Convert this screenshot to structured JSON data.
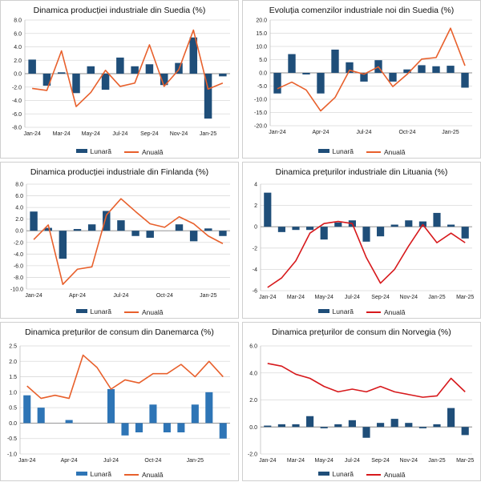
{
  "chart_data": [
    {
      "type": "bar+line",
      "title": "Dinamica producției industriale din Suedia (%)",
      "categories": [
        "Jan-24",
        "Feb-24",
        "Mar-24",
        "Apr-24",
        "May-24",
        "Jun-24",
        "Jul-24",
        "Aug-24",
        "Sep-24",
        "Oct-24",
        "Nov-24",
        "Dec-24",
        "Jan-25",
        "Feb-25"
      ],
      "xlabels": [
        "Jan-24",
        "",
        "Mar-24",
        "",
        "May-24",
        "",
        "Jul-24",
        "",
        "Sep-24",
        "",
        "Nov-24",
        "",
        "Jan-25",
        ""
      ],
      "ylim": [
        -8,
        8
      ],
      "yticks": [
        -8,
        -6,
        -4,
        -2,
        0,
        2,
        4,
        6,
        8
      ],
      "ydecimals": 1,
      "xlabel_pos": "bottom",
      "series": [
        {
          "name": "Lunară",
          "kind": "bar",
          "color": "#1f4e79",
          "values": [
            2.1,
            -1.8,
            0.2,
            -2.9,
            1.1,
            -2.4,
            2.4,
            1.1,
            1.4,
            -1.7,
            1.6,
            5.4,
            -6.7,
            -0.4
          ]
        },
        {
          "name": "Anuală",
          "kind": "line",
          "color": "#e8602c",
          "values": [
            -2.2,
            -2.5,
            3.4,
            -4.9,
            -2.8,
            0.5,
            -1.9,
            -1.4,
            4.3,
            -1.9,
            0.6,
            6.5,
            -2.3,
            -1.4
          ]
        }
      ]
    },
    {
      "type": "bar+line",
      "title": "Evoluția comenzilor industriale noi din Suedia (%)",
      "categories": [
        "Jan-24",
        "Feb-24",
        "Mar-24",
        "Apr-24",
        "May-24",
        "Jun-24",
        "Jul-24",
        "Aug-24",
        "Sep-24",
        "Oct-24",
        "Nov-24",
        "Dec-24",
        "Jan-25",
        "Feb-25"
      ],
      "xlabels": [
        "Jan-24",
        "",
        "",
        "Apr-24",
        "",
        "",
        "Jul-24",
        "",
        "",
        "Oct-24",
        "",
        "",
        "Jan-25",
        ""
      ],
      "ylim": [
        -20,
        20
      ],
      "yticks": [
        -20,
        -15,
        -10,
        -5,
        0,
        5,
        10,
        15,
        20
      ],
      "ydecimals": 1,
      "xlabel_pos": "bottom",
      "series": [
        {
          "name": "Lunară",
          "kind": "bar",
          "color": "#1f4e79",
          "values": [
            -7.8,
            7.1,
            -0.6,
            -7.8,
            8.8,
            4.0,
            -3.3,
            4.8,
            -3.3,
            1.3,
            2.9,
            2.5,
            2.7,
            -5.6
          ]
        },
        {
          "name": "Anuală",
          "kind": "line",
          "color": "#e8602c",
          "values": [
            -6.0,
            -3.5,
            -6.5,
            -14.4,
            -9.3,
            1.0,
            -0.5,
            2.3,
            -5.2,
            -0.5,
            5.2,
            5.8,
            16.9,
            2.7
          ]
        }
      ]
    },
    {
      "type": "bar+line",
      "title": "Dinamica producției industriale din Finlanda (%)",
      "categories": [
        "Jan-24",
        "Feb-24",
        "Mar-24",
        "Apr-24",
        "May-24",
        "Jun-24",
        "Jul-24",
        "Aug-24",
        "Sep-24",
        "Oct-24",
        "Nov-24",
        "Dec-24",
        "Jan-25",
        "Feb-25"
      ],
      "xlabels": [
        "Jan-24",
        "",
        "",
        "Apr-24",
        "",
        "",
        "Jul-24",
        "",
        "",
        "Oct-24",
        "",
        "",
        "Jan-25",
        ""
      ],
      "ylim": [
        -10,
        8
      ],
      "yticks": [
        -10,
        -8,
        -6,
        -4,
        -2,
        0,
        2,
        4,
        6,
        8
      ],
      "ydecimals": 1,
      "xlabel_pos": "bottom",
      "series": [
        {
          "name": "Lunară",
          "kind": "bar",
          "color": "#1f4e79",
          "values": [
            3.3,
            0.5,
            -4.8,
            0.3,
            1.1,
            3.4,
            1.8,
            -0.9,
            -1.2,
            0.0,
            1.1,
            -1.8,
            0.4,
            -0.9
          ]
        },
        {
          "name": "Anuală",
          "kind": "line",
          "color": "#e8602c",
          "values": [
            -1.5,
            1.0,
            -9.2,
            -6.6,
            -6.2,
            2.7,
            5.5,
            3.3,
            1.2,
            0.6,
            2.4,
            1.2,
            -0.9,
            -2.2
          ]
        }
      ]
    },
    {
      "type": "bar+line",
      "title": "Dinamica prețurilor industriale din Lituania (%)",
      "categories": [
        "Jan-24",
        "Feb-24",
        "Mar-24",
        "Apr-24",
        "May-24",
        "Jun-24",
        "Jul-24",
        "Aug-24",
        "Sep-24",
        "Oct-24",
        "Nov-24",
        "Dec-24",
        "Jan-25",
        "Feb-25",
        "Mar-25"
      ],
      "xlabels": [
        "Jan-24",
        "",
        "Mar-24",
        "",
        "May-24",
        "",
        "Jul-24",
        "",
        "Sep-24",
        "",
        "Nov-24",
        "",
        "Jan-25",
        "",
        "Mar-25"
      ],
      "ylim": [
        -6,
        4
      ],
      "yticks": [
        -6,
        -4,
        -2,
        0,
        2,
        4
      ],
      "ydecimals": 0,
      "xlabel_pos": "bottom",
      "series": [
        {
          "name": "Lunară",
          "kind": "bar",
          "color": "#1f4e79",
          "values": [
            3.2,
            -0.5,
            -0.3,
            -0.3,
            -1.2,
            0.4,
            0.6,
            -1.4,
            -0.9,
            0.2,
            0.6,
            0.5,
            1.3,
            0.2,
            -1.1
          ]
        },
        {
          "name": "Anuală",
          "kind": "line",
          "color": "#d7191c",
          "values": [
            -5.7,
            -4.8,
            -3.2,
            -0.6,
            0.3,
            0.5,
            0.3,
            -2.9,
            -5.3,
            -4.0,
            -1.8,
            0.2,
            -1.5,
            -0.6,
            -1.5
          ]
        }
      ]
    },
    {
      "type": "bar+line",
      "title": "Dinamica prețurilor de consum din Danemarca (%)",
      "categories": [
        "Jan-24",
        "Feb-24",
        "Mar-24",
        "Apr-24",
        "May-24",
        "Jun-24",
        "Jul-24",
        "Aug-24",
        "Sep-24",
        "Oct-24",
        "Nov-24",
        "Dec-24",
        "Jan-25",
        "Feb-25",
        "Mar-25"
      ],
      "xlabels": [
        "Jan-24",
        "",
        "",
        "Apr-24",
        "",
        "",
        "Jul-24",
        "",
        "",
        "Oct-24",
        "",
        "",
        "Jan-25",
        "",
        ""
      ],
      "ylim": [
        -1,
        2.5
      ],
      "yticks": [
        -1,
        -0.5,
        0,
        0.5,
        1,
        1.5,
        2,
        2.5
      ],
      "ydecimals": 1,
      "xlabel_pos": "bottom",
      "series": [
        {
          "name": "Lunară",
          "kind": "bar",
          "color": "#2e75b6",
          "values": [
            0.9,
            0.5,
            0.0,
            0.1,
            0.0,
            0.0,
            1.1,
            -0.4,
            -0.3,
            0.6,
            -0.3,
            -0.3,
            0.6,
            1.0,
            -0.5
          ]
        },
        {
          "name": "Anuală",
          "kind": "line",
          "color": "#e8602c",
          "values": [
            1.2,
            0.8,
            0.9,
            0.8,
            2.2,
            1.8,
            1.1,
            1.4,
            1.3,
            1.6,
            1.6,
            1.9,
            1.5,
            2.0,
            1.5
          ]
        }
      ]
    },
    {
      "type": "bar+line",
      "title": "Dinamica prețurilor de consum din Norvegia (%)",
      "categories": [
        "Jan-24",
        "Feb-24",
        "Mar-24",
        "Apr-24",
        "May-24",
        "Jun-24",
        "Jul-24",
        "Aug-24",
        "Sep-24",
        "Oct-24",
        "Nov-24",
        "Dec-24",
        "Jan-25",
        "Feb-25",
        "Mar-25"
      ],
      "xlabels": [
        "Jan-24",
        "",
        "Mar-24",
        "",
        "May-24",
        "",
        "Jul-24",
        "",
        "Sep-24",
        "",
        "Nov-24",
        "",
        "Jan-25",
        "",
        "Mar-25"
      ],
      "ylim": [
        -2,
        6
      ],
      "yticks": [
        -2,
        0,
        2,
        4,
        6
      ],
      "ydecimals": 1,
      "xlabel_pos": "bottom",
      "series": [
        {
          "name": "Lunară",
          "kind": "bar",
          "color": "#1f4e79",
          "values": [
            0.1,
            0.2,
            0.2,
            0.8,
            -0.1,
            0.2,
            0.5,
            -0.8,
            0.3,
            0.6,
            0.3,
            -0.1,
            0.2,
            1.4,
            -0.6
          ]
        },
        {
          "name": "Anuală",
          "kind": "line",
          "color": "#d7191c",
          "values": [
            4.7,
            4.5,
            3.9,
            3.6,
            3.0,
            2.6,
            2.8,
            2.6,
            3.0,
            2.6,
            2.4,
            2.2,
            2.3,
            3.6,
            2.6
          ]
        }
      ]
    }
  ]
}
